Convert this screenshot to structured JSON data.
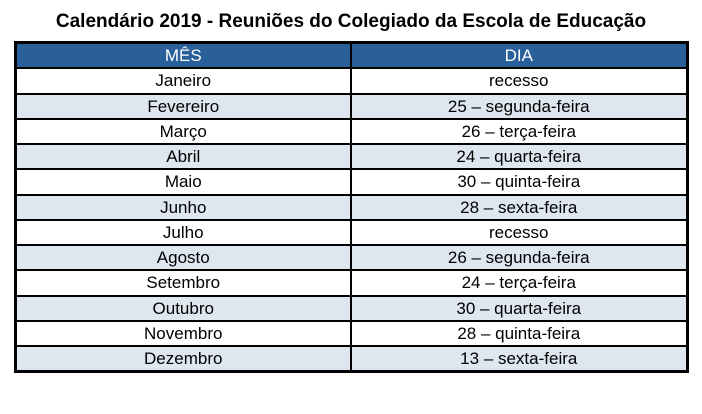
{
  "title": "Calendário 2019 - Reuniões do Colegiado da Escola de Educação",
  "table": {
    "headers": [
      "MÊS",
      "DIA"
    ],
    "rows": [
      {
        "month": "Janeiro",
        "day": "recesso"
      },
      {
        "month": "Fevereiro",
        "day": "25 – segunda-feira"
      },
      {
        "month": "Março",
        "day": "26 – terça-feira"
      },
      {
        "month": "Abril",
        "day": "24 – quarta-feira"
      },
      {
        "month": "Maio",
        "day": "30 – quinta-feira"
      },
      {
        "month": "Junho",
        "day": "28 – sexta-feira"
      },
      {
        "month": "Julho",
        "day": "recesso"
      },
      {
        "month": "Agosto",
        "day": "26 – segunda-feira"
      },
      {
        "month": "Setembro",
        "day": "24 – terça-feira"
      },
      {
        "month": "Outubro",
        "day": "30 – quarta-feira"
      },
      {
        "month": "Novembro",
        "day": "28 – quinta-feira"
      },
      {
        "month": "Dezembro",
        "day": "13 – sexta-feira"
      }
    ],
    "colors": {
      "header_bg": "#2A6099",
      "header_text": "#FFFFFF",
      "row_bg": "#FFFFFF",
      "row_alt_bg": "#DEE6EF",
      "border": "#000000"
    }
  }
}
